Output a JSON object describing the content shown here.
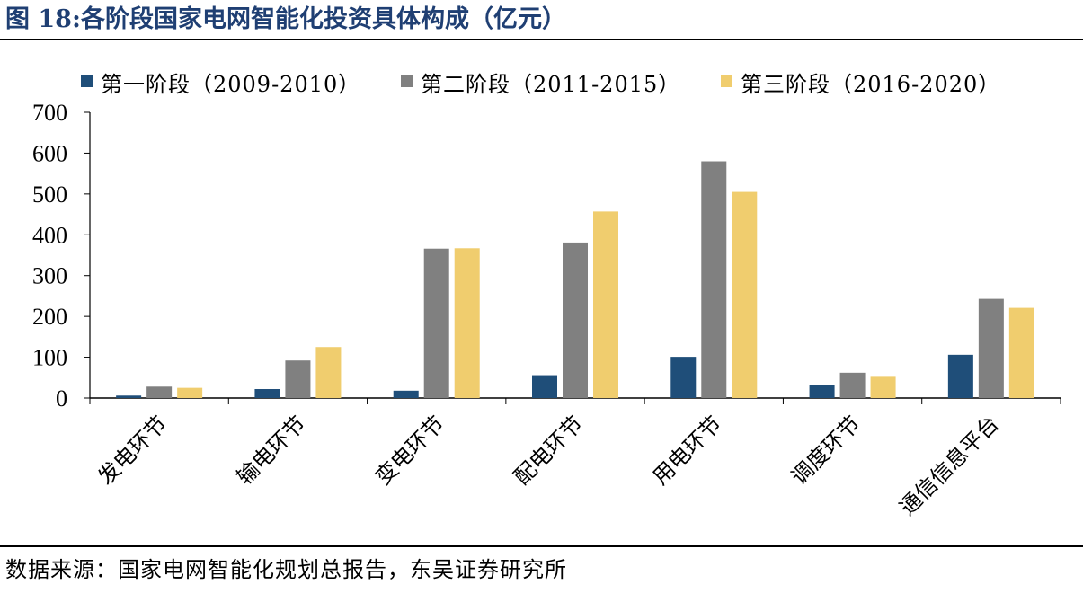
{
  "header": {
    "figure_label": "图 18:",
    "title": "各阶段国家电网智能化投资具体构成（亿元）"
  },
  "footer": {
    "source": "数据来源：国家电网智能化规划总报告，东吴证券研究所"
  },
  "chart_data": {
    "type": "bar",
    "title": "各阶段国家电网智能化投资具体构成（亿元）",
    "categories": [
      "发电环节",
      "输电环节",
      "变电环节",
      "配电环节",
      "用电环节",
      "调度环节",
      "通信信息平台"
    ],
    "series": [
      {
        "name": "第一阶段（2009-2010）",
        "color": "#1f4e79",
        "values": [
          6,
          22,
          18,
          56,
          101,
          33,
          106
        ]
      },
      {
        "name": "第二阶段（2011-2015）",
        "color": "#808080",
        "values": [
          28,
          92,
          366,
          381,
          580,
          62,
          243
        ]
      },
      {
        "name": "第三阶段（2016-2020）",
        "color": "#f0cd6e",
        "values": [
          25,
          125,
          367,
          457,
          505,
          52,
          221
        ]
      }
    ],
    "yticks": [
      "0",
      "100",
      "200",
      "300",
      "400",
      "500",
      "600",
      "700"
    ],
    "ylim": [
      0,
      700
    ],
    "xlabel": "",
    "ylabel": "",
    "grid": false,
    "legend_position": "top"
  }
}
